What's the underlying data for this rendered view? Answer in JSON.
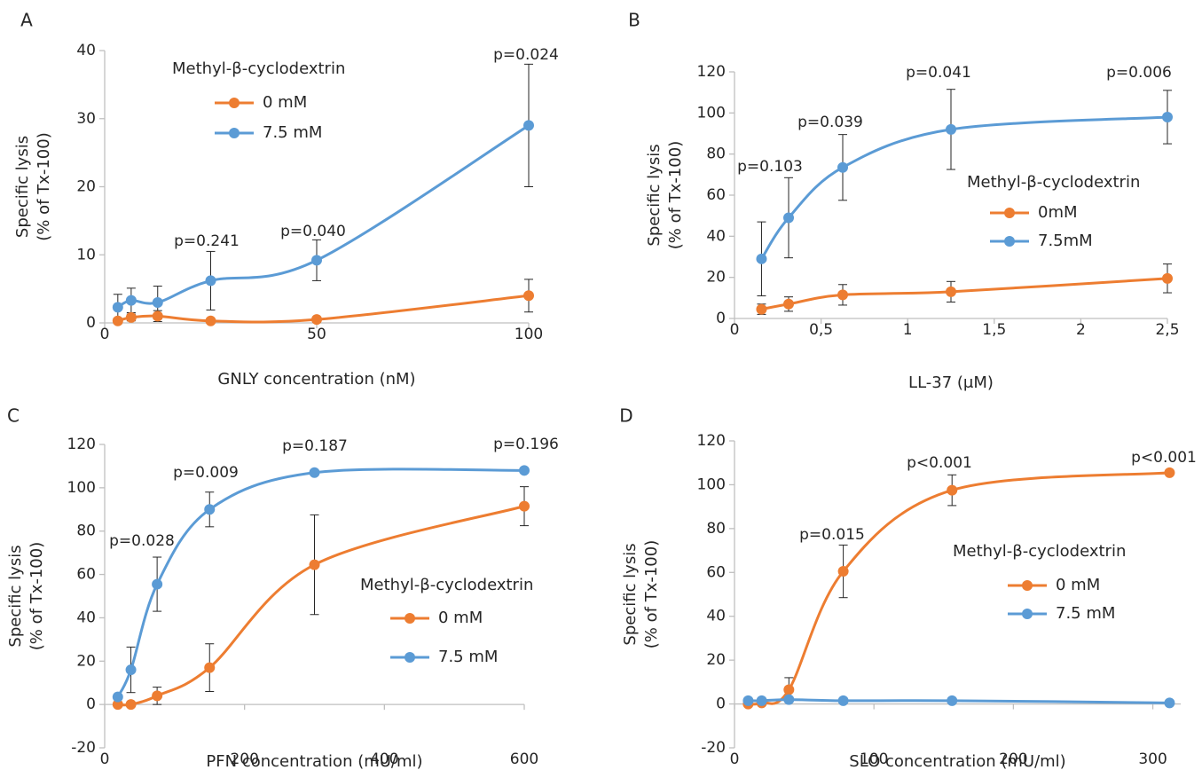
{
  "figure": {
    "background": "#ffffff",
    "axis_color": "#bfbfbf",
    "text_color": "#262626",
    "errorbar_color": "#262626"
  },
  "chart_data": [
    {
      "type": "line",
      "panel": "A",
      "xlabel": "GNLY concentration (nM)",
      "ylabel_line1": "Specific lysis",
      "ylabel_line2": "(% of Tx-100)",
      "xlim": [
        0,
        100
      ],
      "ylim": [
        0,
        40
      ],
      "xticks": [
        0,
        50,
        100
      ],
      "xtick_labels": [
        "0",
        "50",
        "100"
      ],
      "yticks": [
        0,
        10,
        20,
        30,
        40
      ],
      "ytick_labels": [
        "0",
        "10",
        "20",
        "30",
        "40"
      ],
      "legend": {
        "title": "Methyl-β-cyclodextrin",
        "placement": "top-left"
      },
      "series": [
        {
          "name": "0 mM",
          "color": "#ed7d31",
          "x": [
            3.1,
            6.25,
            12.5,
            25,
            50,
            100
          ],
          "values": [
            0.3,
            0.8,
            1.0,
            0.3,
            0.5,
            4.0
          ],
          "err": [
            0.4,
            0.5,
            0.8,
            0.3,
            0.4,
            2.4
          ]
        },
        {
          "name": "7.5 mM",
          "color": "#5b9bd5",
          "x": [
            3.1,
            6.25,
            12.5,
            25,
            50,
            100
          ],
          "values": [
            2.3,
            3.3,
            3.0,
            6.2,
            9.2,
            29.0
          ],
          "err": [
            1.9,
            1.8,
            2.4,
            4.3,
            3.0,
            9.0
          ]
        }
      ],
      "annotations": [
        {
          "text": "p=0.241",
          "x": 25,
          "y": 12.3
        },
        {
          "text": "p=0.040",
          "x": 50,
          "y": 13.8
        },
        {
          "text": "p=0.024",
          "x": 100,
          "y": 39.5
        }
      ]
    },
    {
      "type": "line",
      "panel": "B",
      "xlabel": "LL-37 (μM)",
      "ylabel_line1": "Specific lysis",
      "ylabel_line2": "(% of Tx-100)",
      "xlim": [
        0,
        2.5
      ],
      "ylim": [
        0,
        120
      ],
      "xticks": [
        0,
        0.5,
        1,
        1.5,
        2,
        2.5
      ],
      "xtick_labels": [
        "0",
        "0,5",
        "1",
        "1,5",
        "2",
        "2,5"
      ],
      "yticks": [
        0,
        20,
        40,
        60,
        80,
        100,
        120
      ],
      "ytick_labels": [
        "0",
        "20",
        "40",
        "60",
        "80",
        "100",
        "120"
      ],
      "legend": {
        "title": "Methyl-β-cyclodextrin",
        "placement": "center-right"
      },
      "series": [
        {
          "name": "0mM",
          "color": "#ed7d31",
          "x": [
            0.156,
            0.3125,
            0.625,
            1.25,
            2.5
          ],
          "values": [
            4.5,
            7.0,
            11.5,
            13.0,
            19.5
          ],
          "err": [
            2.5,
            3.5,
            5.0,
            5.0,
            7.0
          ]
        },
        {
          "name": "7.5mM",
          "color": "#5b9bd5",
          "x": [
            0.156,
            0.3125,
            0.625,
            1.25,
            2.5
          ],
          "values": [
            29.0,
            49.0,
            73.5,
            92.0,
            98.0
          ],
          "err": [
            18.0,
            19.5,
            16.0,
            19.5,
            13.0
          ]
        }
      ],
      "annotations": [
        {
          "text": "p=0.103",
          "x": 0.156,
          "y": 73.5
        },
        {
          "text": "p=0.039",
          "x": 0.72,
          "y": 96
        },
        {
          "text": "p=0.041",
          "x": 1.28,
          "y": 116
        },
        {
          "text": "p=0.006",
          "x": 2.5,
          "y": 116
        }
      ]
    },
    {
      "type": "line",
      "panel": "C",
      "xlabel": "PFN concentration (mU/ml)",
      "ylabel_line1": "Specific lysis",
      "ylabel_line2": "(% of Tx-100)",
      "xlim": [
        0,
        600
      ],
      "ylim": [
        -20,
        120
      ],
      "xticks": [
        0,
        200,
        400,
        600
      ],
      "xtick_labels": [
        "0",
        "200",
        "400",
        "600"
      ],
      "yticks": [
        -20,
        0,
        20,
        40,
        60,
        80,
        100,
        120
      ],
      "ytick_labels": [
        "-20",
        "0",
        "20",
        "40",
        "60",
        "80",
        "100",
        "120"
      ],
      "legend": {
        "title": "Methyl-β-cyclodextrin",
        "placement": "center-right"
      },
      "series": [
        {
          "name": "0 mM",
          "color": "#ed7d31",
          "x": [
            18.75,
            37.5,
            75,
            150,
            300,
            600
          ],
          "values": [
            0,
            0,
            4.0,
            17.0,
            64.5,
            91.5
          ],
          "err": [
            0,
            0,
            4.0,
            11.0,
            23.0,
            9.0
          ]
        },
        {
          "name": "7.5 mM",
          "color": "#5b9bd5",
          "x": [
            18.75,
            37.5,
            75,
            150,
            300,
            600
          ],
          "values": [
            3.5,
            16.0,
            55.5,
            90.0,
            107.0,
            108.0
          ],
          "err": [
            1.0,
            10.5,
            12.5,
            8.0,
            1.0,
            1.0
          ]
        }
      ],
      "annotations": [
        {
          "text": "p=0.028",
          "x": 60,
          "y": 75.5
        },
        {
          "text": "p=0.009",
          "x": 150,
          "y": 108
        },
        {
          "text": "p=0.187",
          "x": 300,
          "y": 118
        },
        {
          "text": "p=0.196",
          "x": 575,
          "y": 122
        }
      ]
    },
    {
      "type": "line",
      "panel": "D",
      "xlabel": "SLO concentration (mU/ml)",
      "ylabel_line1": "Specific lysis",
      "ylabel_line2": "(% of Tx-100)",
      "xlim": [
        0,
        320
      ],
      "ylim": [
        -20,
        120
      ],
      "xticks": [
        0,
        100,
        200,
        300
      ],
      "xtick_labels": [
        "0",
        "100",
        "200",
        "300"
      ],
      "yticks": [
        -20,
        0,
        20,
        40,
        60,
        80,
        100,
        120
      ],
      "ytick_labels": [
        "-20",
        "0",
        "20",
        "40",
        "60",
        "80",
        "100",
        "120"
      ],
      "legend": {
        "title": "Methyl-β-cyclodextrin",
        "placement": "center-right"
      },
      "series": [
        {
          "name": "0 mM",
          "color": "#ed7d31",
          "x": [
            9.8,
            19.5,
            39,
            78,
            156,
            312
          ],
          "values": [
            0,
            0.5,
            6.5,
            60.5,
            97.5,
            105.5
          ],
          "err": [
            0,
            0,
            5.5,
            12.0,
            7.0,
            1.0
          ]
        },
        {
          "name": "7.5 mM",
          "color": "#5b9bd5",
          "x": [
            9.8,
            19.5,
            39,
            78,
            156,
            312
          ],
          "values": [
            1.5,
            1.5,
            2.0,
            1.5,
            1.5,
            0.5
          ],
          "err": [
            0,
            0,
            0,
            0,
            0,
            0
          ]
        }
      ],
      "annotations": [
        {
          "text": "p=0.015",
          "x": 72,
          "y": 78
        },
        {
          "text": "p<0.001",
          "x": 155,
          "y": 112
        },
        {
          "text": "p<0.001",
          "x": 298,
          "y": 113
        }
      ]
    }
  ]
}
